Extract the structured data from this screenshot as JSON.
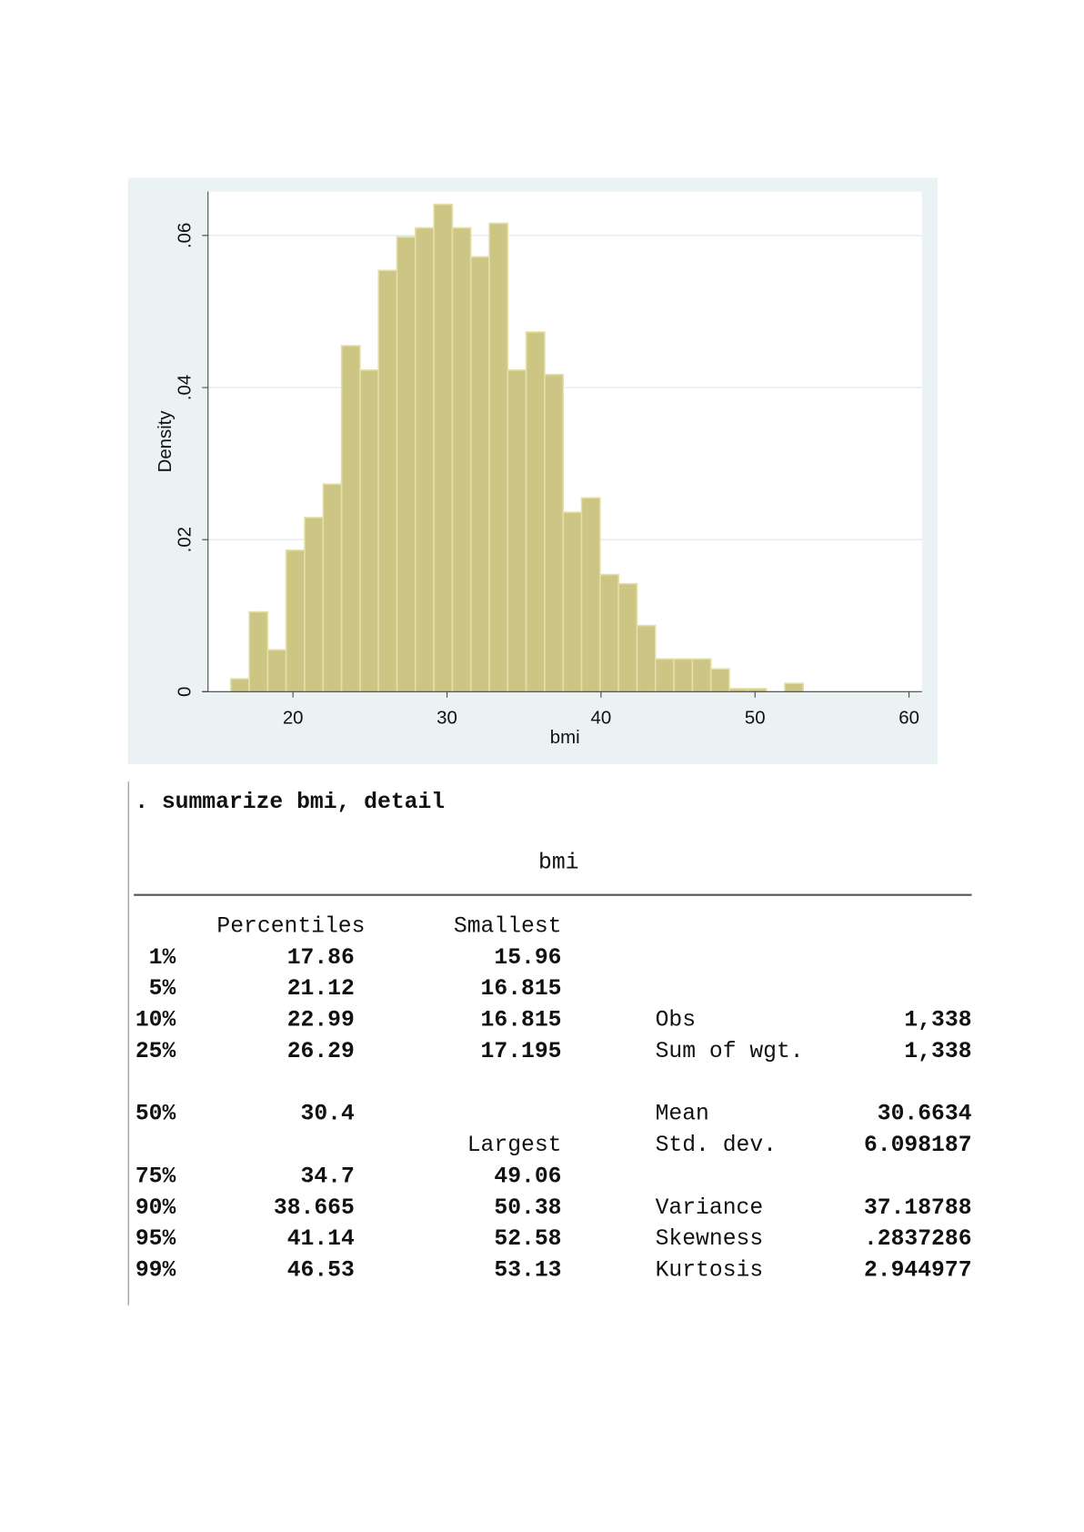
{
  "chart_data": {
    "type": "bar",
    "subtype": "histogram",
    "title": "",
    "xlabel": "bmi",
    "ylabel": "Density",
    "xlim": [
      14,
      61
    ],
    "ylim": [
      0,
      0.066
    ],
    "xticks": [
      20,
      30,
      40,
      50,
      60
    ],
    "xtick_labels": [
      "20",
      "30",
      "40",
      "50",
      "60"
    ],
    "yticks": [
      0,
      0.02,
      0.04,
      0.06
    ],
    "ytick_labels": [
      "0",
      ".02",
      ".04",
      ".06"
    ],
    "grid": true,
    "bin_start": 15.96,
    "bin_width": 1.199,
    "values": [
      0.0017,
      0.0105,
      0.0055,
      0.0186,
      0.0229,
      0.0273,
      0.0455,
      0.0423,
      0.0554,
      0.0598,
      0.061,
      0.0641,
      0.061,
      0.0572,
      0.0616,
      0.0423,
      0.0473,
      0.0417,
      0.0236,
      0.0255,
      0.0154,
      0.0142,
      0.0087,
      0.0043,
      0.0043,
      0.0043,
      0.003,
      0.0004,
      0.0004,
      0,
      0.0011
    ],
    "colors": {
      "bar": "#cdc584",
      "bar_edge": "#e4dfa8",
      "panel": "#eaf2f3",
      "grid": "#e6eef0"
    }
  },
  "console": {
    "command": ". summarize bmi, detail",
    "variable": "bmi",
    "col_percentiles": "Percentiles",
    "col_smallest": "Smallest",
    "col_largest": "Largest",
    "rows": [
      {
        "pct": "1%",
        "p": "17.86",
        "s": "15.96",
        "stat": "",
        "val": ""
      },
      {
        "pct": "5%",
        "p": "21.12",
        "s": "16.815",
        "stat": "",
        "val": ""
      },
      {
        "pct": "10%",
        "p": "22.99",
        "s": "16.815",
        "stat": "Obs",
        "val": "1,338"
      },
      {
        "pct": "25%",
        "p": "26.29",
        "s": "17.195",
        "stat": "Sum of wgt.",
        "val": "1,338"
      },
      {
        "pct": "50%",
        "p": "30.4",
        "s": "",
        "stat": "Mean",
        "val": "30.6634"
      },
      {
        "pct": "",
        "p": "",
        "s": "Largest",
        "stat": "Std. dev.",
        "val": "6.098187"
      },
      {
        "pct": "75%",
        "p": "34.7",
        "s": "49.06",
        "stat": "",
        "val": ""
      },
      {
        "pct": "90%",
        "p": "38.665",
        "s": "50.38",
        "stat": "Variance",
        "val": "37.18788"
      },
      {
        "pct": "95%",
        "p": "41.14",
        "s": "52.58",
        "stat": "Skewness",
        ".": "",
        "val": ".2837286"
      },
      {
        "pct": "99%",
        "p": "46.53",
        "s": "53.13",
        "stat": "Kurtosis",
        "val": "2.944977"
      }
    ]
  }
}
